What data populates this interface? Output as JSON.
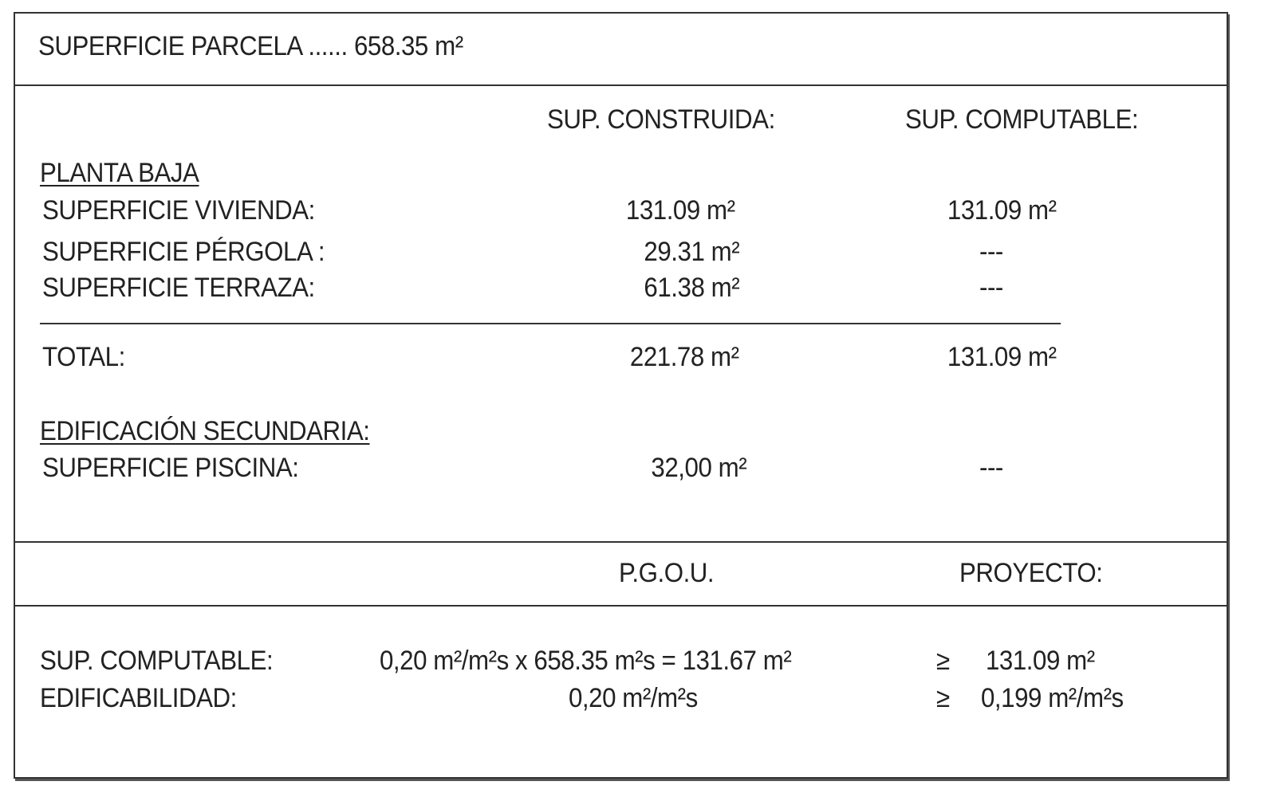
{
  "header": {
    "parcel_label": "SUPERFICIE PARCELA ...... 658.35 m²"
  },
  "columns": {
    "built": "SUP. CONSTRUIDA:",
    "computable": "SUP. COMPUTABLE:"
  },
  "ground_floor": {
    "title": "PLANTA BAJA",
    "rows": [
      {
        "label": "SUPERFICIE VIVIENDA:",
        "built": "131.09 m²",
        "computable": "131.09 m²"
      },
      {
        "label": "SUPERFICIE PÉRGOLA :",
        "built": "29.31 m²",
        "computable": "---"
      },
      {
        "label": "SUPERFICIE TERRAZA:",
        "built": "61.38 m²",
        "computable": "---"
      }
    ],
    "total": {
      "label": "TOTAL:",
      "built": "221.78 m²",
      "computable": "131.09 m²"
    }
  },
  "secondary": {
    "title": "EDIFICACIÓN SECUNDARIA:",
    "rows": [
      {
        "label": "SUPERFICIE PISCINA:",
        "built": "32,00 m²",
        "computable": "---"
      }
    ]
  },
  "compliance": {
    "col_pgou": "P.G.O.U.",
    "col_project": "PROYECTO:",
    "rows": [
      {
        "label": "SUP. COMPUTABLE:",
        "pgou": "0,20 m²/m²s  x  658.35 m²s  = 131.67 m²",
        "symbol": "≥",
        "project": "131.09 m²"
      },
      {
        "label": "EDIFICABILIDAD:",
        "pgou": "0,20 m²/m²s",
        "symbol": "≥",
        "project": "0,199 m²/m²s"
      }
    ]
  }
}
